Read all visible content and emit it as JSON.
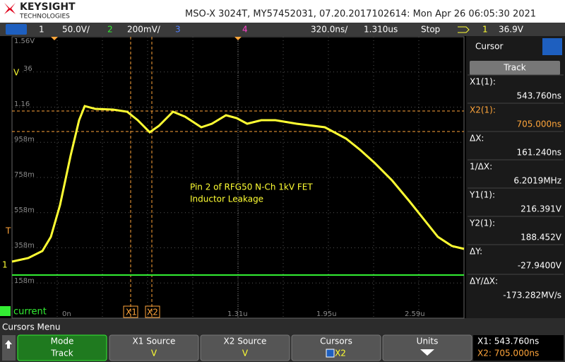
{
  "header": {
    "brand": "KEYSIGHT",
    "brand_sub": "TECHNOLOGIES",
    "title": "MSO-X 3024T, MY57452031, 07.20.2017102614: Mon Apr 26 06:05:30 2021"
  },
  "status_bar": {
    "ch1": "1",
    "ch1_scale": "50.0V/",
    "ch2": "2",
    "ch2_scale": "200mV/",
    "ch3": "3",
    "ch4": "4",
    "timebase": "320.0ns/",
    "delay": "1.310us",
    "run_state": "Stop",
    "trigger_source": "1",
    "trigger_level": "36.9V"
  },
  "display": {
    "left_labels": [
      "1.56V",
      "1.16",
      "958m",
      "758m",
      "558m",
      "358m",
      "158m"
    ],
    "unit_label": "V",
    "unit_sub": "36",
    "bottom_labels": [
      "0n",
      "1.31u",
      "1.95u",
      "2.59u"
    ],
    "trigger_marker": "T",
    "ch1_marker": "1",
    "channel_number": "2",
    "channel_label": "current",
    "annotation": [
      "Pin 2 of RFG50 N-Ch 1kV FET",
      "Inductor Leakage"
    ],
    "cursor_labels": [
      "X1",
      "X2"
    ]
  },
  "side_panel": {
    "title": "Cursor",
    "mode": "Track",
    "readouts": [
      {
        "label": "X1(1):",
        "value": "543.760ns"
      },
      {
        "label": "X2(1):",
        "value": "705.000ns"
      },
      {
        "label": "ΔX:",
        "value": "161.240ns"
      },
      {
        "label": "1/ΔX:",
        "value": "6.2019MHz"
      },
      {
        "label": "Y1(1):",
        "value": "216.391V"
      },
      {
        "label": "Y2(1):",
        "value": "188.452V"
      },
      {
        "label": "ΔY:",
        "value": "-27.9400V"
      },
      {
        "label": "ΔY/ΔX:",
        "value": "-173.282MV/s"
      }
    ]
  },
  "softkeys": {
    "menu_title": "Cursors Menu",
    "keys": [
      {
        "label": "Mode",
        "value": "Track"
      },
      {
        "label": "X1 Source",
        "value": "V"
      },
      {
        "label": "X2 Source",
        "value": "V"
      },
      {
        "label": "Cursors",
        "value": "X2"
      },
      {
        "label": "Units"
      }
    ],
    "summary": [
      "X1: 543.760ns",
      "X2: 705.000ns"
    ]
  }
}
